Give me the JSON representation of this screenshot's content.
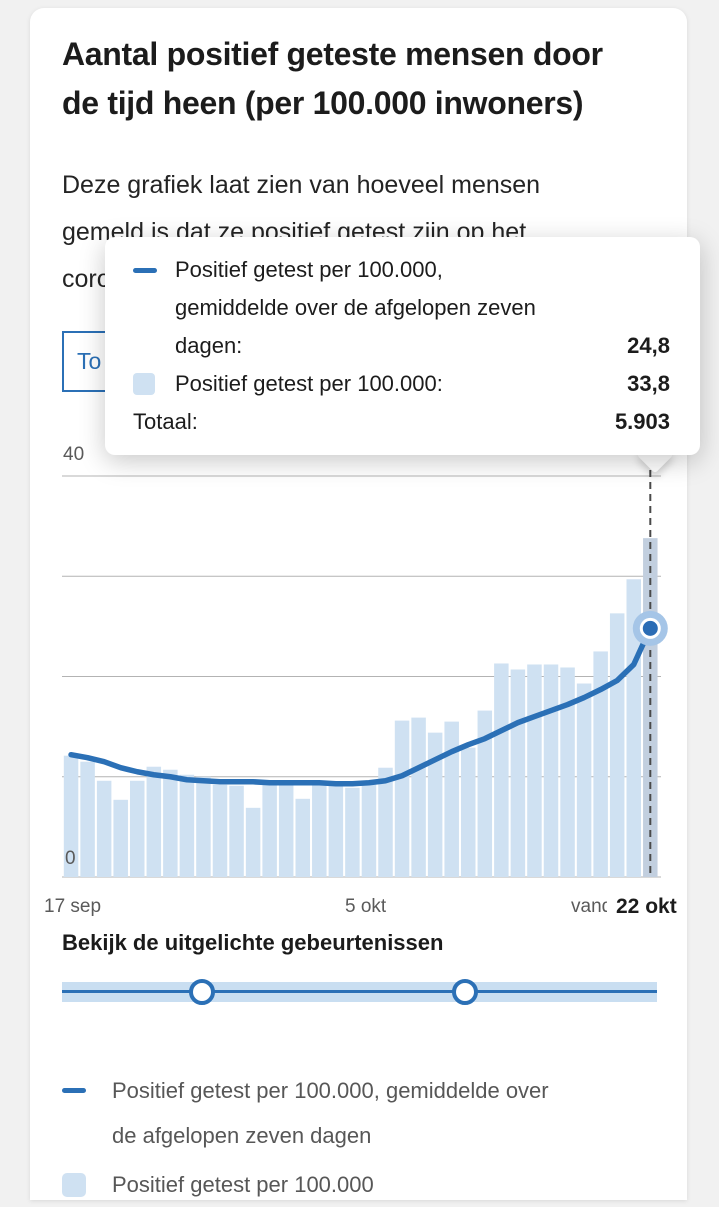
{
  "header": {
    "title": "Aantal positief geteste mensen door\nde tijd heen (per 100.000 inwoners)",
    "description": "Deze grafiek laat zien van hoeveel mensen\ngemeld is dat ze positief getest zijn op het\ncoronavirus."
  },
  "controls": {
    "toggle_button_label": "To"
  },
  "tooltip": {
    "rows": [
      {
        "icon": "line-dash",
        "label": "Positief getest per 100.000,\ngemiddelde over de afgelopen zeven\ndagen:",
        "value": "24,8"
      },
      {
        "icon": "square",
        "label": "Positief getest per 100.000:",
        "value": "33,8"
      },
      {
        "icon": null,
        "label": "Totaal:",
        "value": "5.903"
      }
    ]
  },
  "chart_data": {
    "type": "bar+line",
    "x_start": "17 sep",
    "x_end": "22 okt",
    "n_days": 36,
    "ylim": [
      0,
      40
    ],
    "gridlines": [
      0,
      10,
      20,
      30,
      40
    ],
    "y_max_label": "40",
    "y_min_label": "0",
    "x_tick_labels": {
      "left": "17 sep",
      "middle": "5 okt",
      "right": "vandaag"
    },
    "bars": {
      "name": "Positief getest per 100.000",
      "values": [
        12.1,
        11.5,
        9.6,
        7.7,
        9.6,
        11.0,
        10.7,
        10.2,
        10.0,
        9.2,
        9.1,
        6.9,
        9.3,
        9.4,
        7.8,
        9.3,
        9.2,
        8.9,
        9.2,
        10.9,
        15.6,
        15.9,
        14.4,
        15.5,
        12.9,
        16.6,
        21.3,
        20.7,
        21.2,
        21.2,
        20.9,
        19.3,
        22.5,
        26.3,
        29.7,
        33.8
      ]
    },
    "line": {
      "name": "Positief getest per 100.000, gemiddelde over de afgelopen zeven dagen",
      "values": [
        12.2,
        11.9,
        11.5,
        10.9,
        10.5,
        10.2,
        10.0,
        9.7,
        9.6,
        9.5,
        9.5,
        9.5,
        9.4,
        9.4,
        9.4,
        9.4,
        9.3,
        9.3,
        9.4,
        9.6,
        10.1,
        10.9,
        11.7,
        12.5,
        13.2,
        13.8,
        14.6,
        15.4,
        16.0,
        16.6,
        17.2,
        17.9,
        18.7,
        19.6,
        21.2,
        24.8
      ]
    },
    "selected": {
      "index": 35,
      "date_label": "22 okt",
      "bar_value": "33,8",
      "line_value": "24,8",
      "total": "5.903"
    }
  },
  "timeline": {
    "heading": "Bekijk de uitgelichte gebeurtenissen",
    "handles_pct": [
      23.5,
      67.7
    ]
  },
  "legend": {
    "items": [
      {
        "icon": "line-dash",
        "label": "Positief getest per 100.000, gemiddelde over\nde afgelopen zeven dagen"
      },
      {
        "icon": "square",
        "label": "Positief getest per 100.000"
      }
    ]
  },
  "colors": {
    "accent_blue": "#2b70b6",
    "bar": "#cfe1f2",
    "bar_selected": "#c2cfdf",
    "line": "#2b70b6",
    "dot": "#2a6cb5",
    "halo": "#a5c5e7",
    "grid": "#b3b3b3",
    "dashed_marker": "#4a4a4a",
    "text_gray": "#575757",
    "track": "#c9def1",
    "page_bg": "#f1f1f1"
  }
}
